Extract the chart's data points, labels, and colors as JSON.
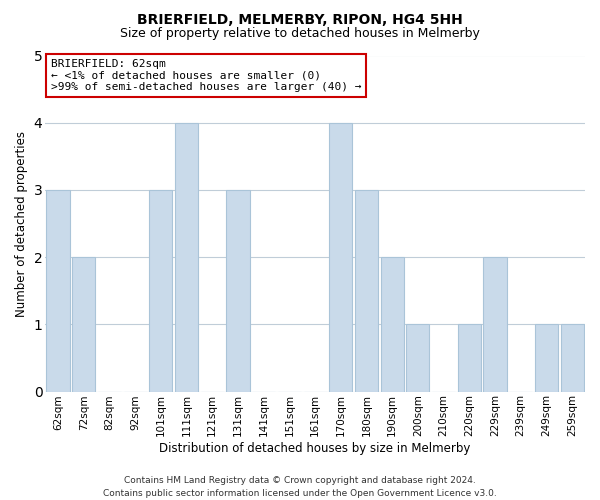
{
  "title": "BRIERFIELD, MELMERBY, RIPON, HG4 5HH",
  "subtitle": "Size of property relative to detached houses in Melmerby",
  "xlabel": "Distribution of detached houses by size in Melmerby",
  "ylabel": "Number of detached properties",
  "categories": [
    "62sqm",
    "72sqm",
    "82sqm",
    "92sqm",
    "101sqm",
    "111sqm",
    "121sqm",
    "131sqm",
    "141sqm",
    "151sqm",
    "161sqm",
    "170sqm",
    "180sqm",
    "190sqm",
    "200sqm",
    "210sqm",
    "220sqm",
    "229sqm",
    "239sqm",
    "249sqm",
    "259sqm"
  ],
  "values": [
    3,
    2,
    0,
    0,
    3,
    4,
    0,
    3,
    0,
    0,
    0,
    4,
    3,
    2,
    1,
    0,
    1,
    2,
    0,
    1,
    1
  ],
  "bar_color": "#c9daea",
  "bar_edge_color": "#aac4d8",
  "ylim": [
    0,
    5
  ],
  "yticks": [
    0,
    1,
    2,
    3,
    4,
    5
  ],
  "annotation_title": "BRIERFIELD: 62sqm",
  "annotation_line1": "← <1% of detached houses are smaller (0)",
  "annotation_line2": ">99% of semi-detached houses are larger (40) →",
  "annotation_box_color": "#ffffff",
  "annotation_box_edge": "#cc0000",
  "footer_line1": "Contains HM Land Registry data © Crown copyright and database right 2024.",
  "footer_line2": "Contains public sector information licensed under the Open Government Licence v3.0.",
  "background_color": "#ffffff",
  "grid_color": "#c0cdd8",
  "title_fontsize": 10,
  "subtitle_fontsize": 9,
  "xlabel_fontsize": 8.5,
  "ylabel_fontsize": 8.5,
  "tick_fontsize": 7.5,
  "ann_fontsize": 8,
  "footer_fontsize": 6.5
}
